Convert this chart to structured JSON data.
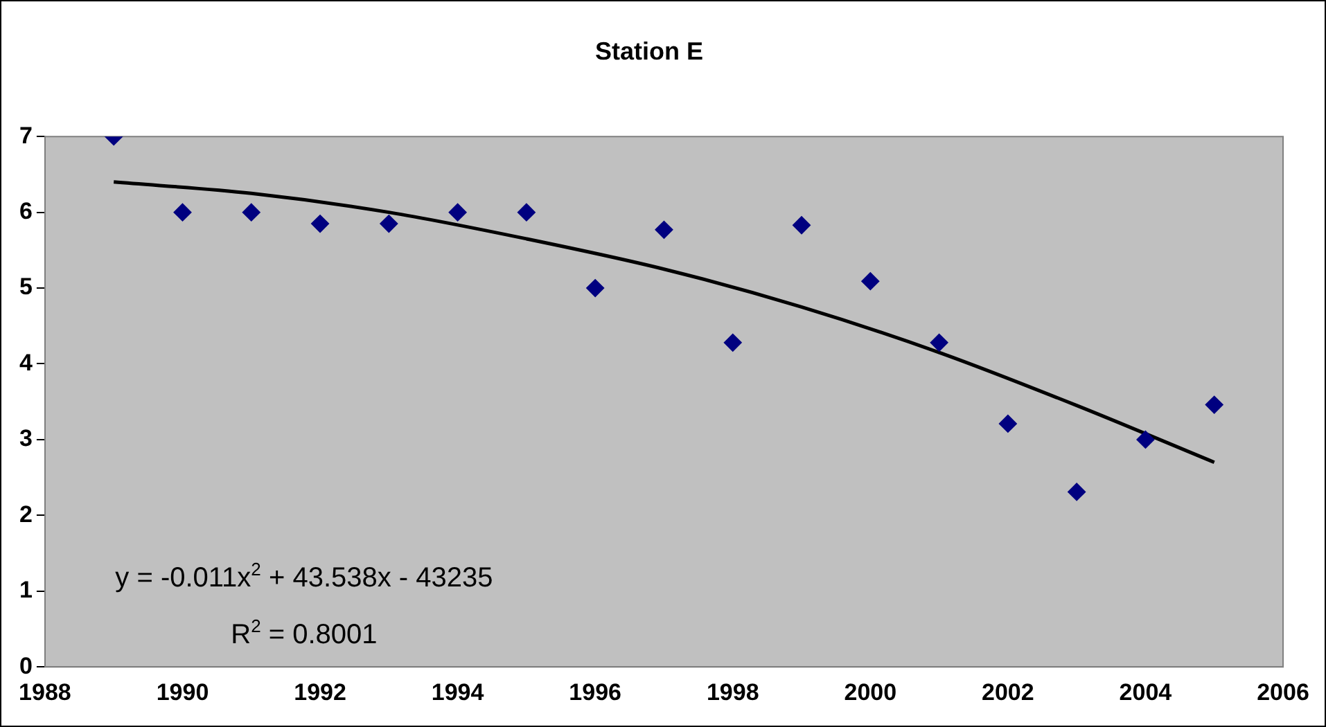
{
  "chart_data": {
    "type": "scatter",
    "title": "Station E",
    "marker": "diamond",
    "grid": false,
    "legend": false,
    "xlim": [
      1988,
      2006
    ],
    "xticks": [
      1988,
      1990,
      1992,
      1994,
      1996,
      1998,
      2000,
      2002,
      2004,
      2006
    ],
    "ylim": [
      0,
      7
    ],
    "yticks": [
      0,
      1,
      2,
      3,
      4,
      5,
      6,
      7
    ],
    "annotations": [
      "y = -0.011x$^{2}$ + 43.538x - 43235",
      "R$^{2}$ = 0.8001"
    ],
    "series": [
      {
        "color": "#000080",
        "x": [
          1989,
          1990,
          1991,
          1992,
          1993,
          1994,
          1995,
          1996,
          1997,
          1998,
          1999,
          2000,
          2001,
          2002,
          2003,
          2004,
          2005
        ],
        "values": [
          7.0,
          6.0,
          6.0,
          5.85,
          5.85,
          6.0,
          6.0,
          5.0,
          5.77,
          4.28,
          5.83,
          5.09,
          4.28,
          3.21,
          2.31,
          3.0,
          3.46
        ]
      },
      {
        "type": "line",
        "color": "#000000",
        "marker": "none",
        "x": [
          1989,
          1991,
          1993,
          1995,
          1997,
          1999,
          2001,
          2003,
          2005
        ],
        "values": [
          6.4,
          6.25,
          6.0,
          5.65,
          5.25,
          4.75,
          4.15,
          3.45,
          2.7
        ]
      }
    ]
  }
}
